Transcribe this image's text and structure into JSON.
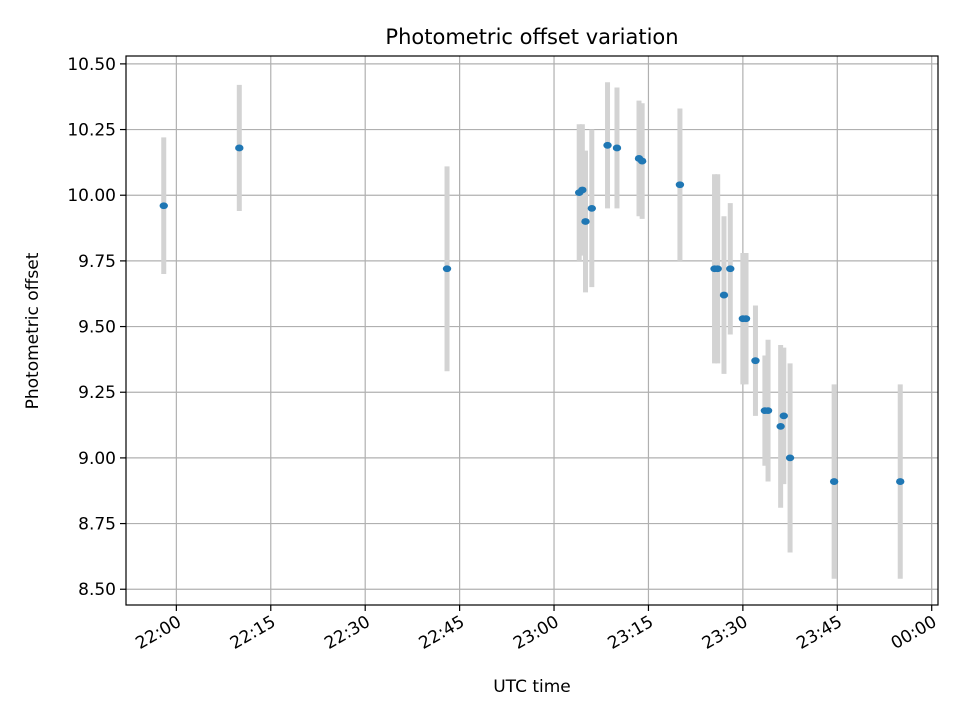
{
  "chart_data": {
    "type": "scatter",
    "title": "Photometric offset variation",
    "xlabel": "UTC time",
    "ylabel": "Photometric offset",
    "xlim": [
      "21:52",
      "00:01"
    ],
    "ylim": [
      8.44,
      10.53
    ],
    "x_ticks": [
      "22:00",
      "22:15",
      "22:30",
      "22:45",
      "23:00",
      "23:15",
      "23:30",
      "23:45",
      "00:00"
    ],
    "y_ticks": [
      "8.50",
      "8.75",
      "9.00",
      "9.25",
      "9.50",
      "9.75",
      "10.00",
      "10.25",
      "10.50"
    ],
    "grid": true,
    "colors": {
      "point": "#1f77b4",
      "errorbar": "#d3d3d3",
      "grid": "#b0b0b0"
    },
    "points": [
      {
        "x": "21:58",
        "y": 9.96,
        "yerr": 0.26
      },
      {
        "x": "22:10",
        "y": 10.18,
        "yerr": 0.24
      },
      {
        "x": "22:43",
        "y": 9.72,
        "yerr": 0.39
      },
      {
        "x": "23:04",
        "y": 10.01,
        "yerr": 0.26
      },
      {
        "x": "23:04.5",
        "y": 10.02,
        "yerr": 0.25
      },
      {
        "x": "23:05",
        "y": 9.9,
        "yerr": 0.27
      },
      {
        "x": "23:06",
        "y": 9.95,
        "yerr": 0.3
      },
      {
        "x": "23:08.5",
        "y": 10.19,
        "yerr": 0.24
      },
      {
        "x": "23:10",
        "y": 10.18,
        "yerr": 0.23
      },
      {
        "x": "23:13.5",
        "y": 10.14,
        "yerr": 0.22
      },
      {
        "x": "23:14",
        "y": 10.13,
        "yerr": 0.22
      },
      {
        "x": "23:20",
        "y": 10.04,
        "yerr": 0.29
      },
      {
        "x": "23:25.5",
        "y": 9.72,
        "yerr": 0.36
      },
      {
        "x": "23:26",
        "y": 9.72,
        "yerr": 0.36
      },
      {
        "x": "23:27",
        "y": 9.62,
        "yerr": 0.3
      },
      {
        "x": "23:28",
        "y": 9.72,
        "yerr": 0.25
      },
      {
        "x": "23:30",
        "y": 9.53,
        "yerr": 0.25
      },
      {
        "x": "23:30.5",
        "y": 9.53,
        "yerr": 0.25
      },
      {
        "x": "23:32",
        "y": 9.37,
        "yerr": 0.21
      },
      {
        "x": "23:33.5",
        "y": 9.18,
        "yerr": 0.21
      },
      {
        "x": "23:34",
        "y": 9.18,
        "yerr": 0.27
      },
      {
        "x": "23:36",
        "y": 9.12,
        "yerr": 0.31
      },
      {
        "x": "23:36.5",
        "y": 9.16,
        "yerr": 0.26
      },
      {
        "x": "23:37.5",
        "y": 9.0,
        "yerr": 0.36
      },
      {
        "x": "23:44.5",
        "y": 8.91,
        "yerr": 0.37
      },
      {
        "x": "23:55",
        "y": 8.91,
        "yerr": 0.37
      }
    ]
  }
}
